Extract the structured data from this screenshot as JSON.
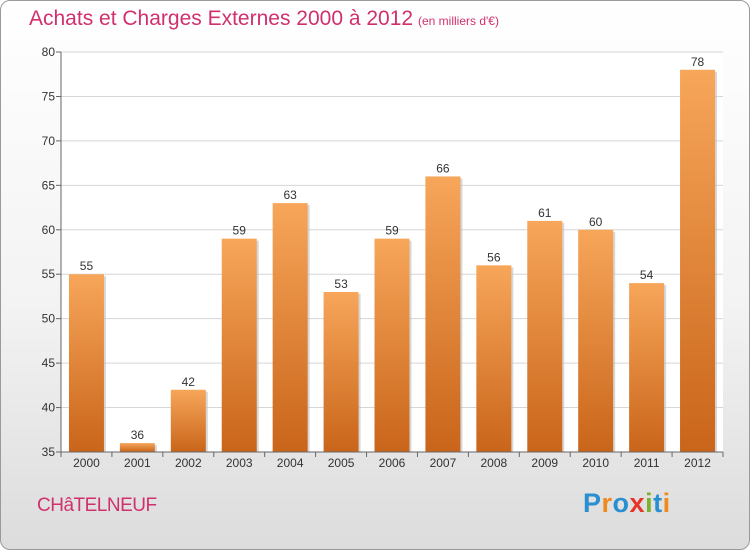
{
  "header": {
    "title": "Achats et Charges Externes 2000 à 2012",
    "subtitle": "(en milliers d'€)"
  },
  "footer": {
    "city": "CHâTELNEUF",
    "logo_letters": [
      {
        "ch": "P",
        "color": "#2a8fd0"
      },
      {
        "ch": "r",
        "color": "#f08a1c"
      },
      {
        "ch": "o",
        "color": "#2a8fd0"
      },
      {
        "ch": "x",
        "color": "#e8352a"
      },
      {
        "ch": "i",
        "color": "#7ab22a"
      },
      {
        "ch": "t",
        "color": "#2a8fd0"
      },
      {
        "ch": "i",
        "color": "#f08a1c"
      }
    ]
  },
  "colors": {
    "bar_top": "#f7a65a",
    "bar_bottom": "#c9651a",
    "grid": "#d6d6d6",
    "axis": "#666666",
    "accent": "#d0306e"
  },
  "chart_data": {
    "type": "bar",
    "title": "Achats et Charges Externes 2000 à 2012",
    "subtitle": "(en milliers d'€)",
    "xlabel": "",
    "ylabel": "",
    "categories": [
      "2000",
      "2001",
      "2002",
      "2003",
      "2004",
      "2005",
      "2006",
      "2007",
      "2008",
      "2009",
      "2010",
      "2011",
      "2012"
    ],
    "values": [
      55,
      36,
      42,
      59,
      63,
      53,
      59,
      66,
      56,
      61,
      60,
      54,
      78
    ],
    "ylim": [
      35,
      80
    ],
    "yticks": [
      35,
      40,
      45,
      50,
      55,
      60,
      65,
      70,
      75,
      80
    ],
    "grid": true,
    "legend": "none"
  }
}
